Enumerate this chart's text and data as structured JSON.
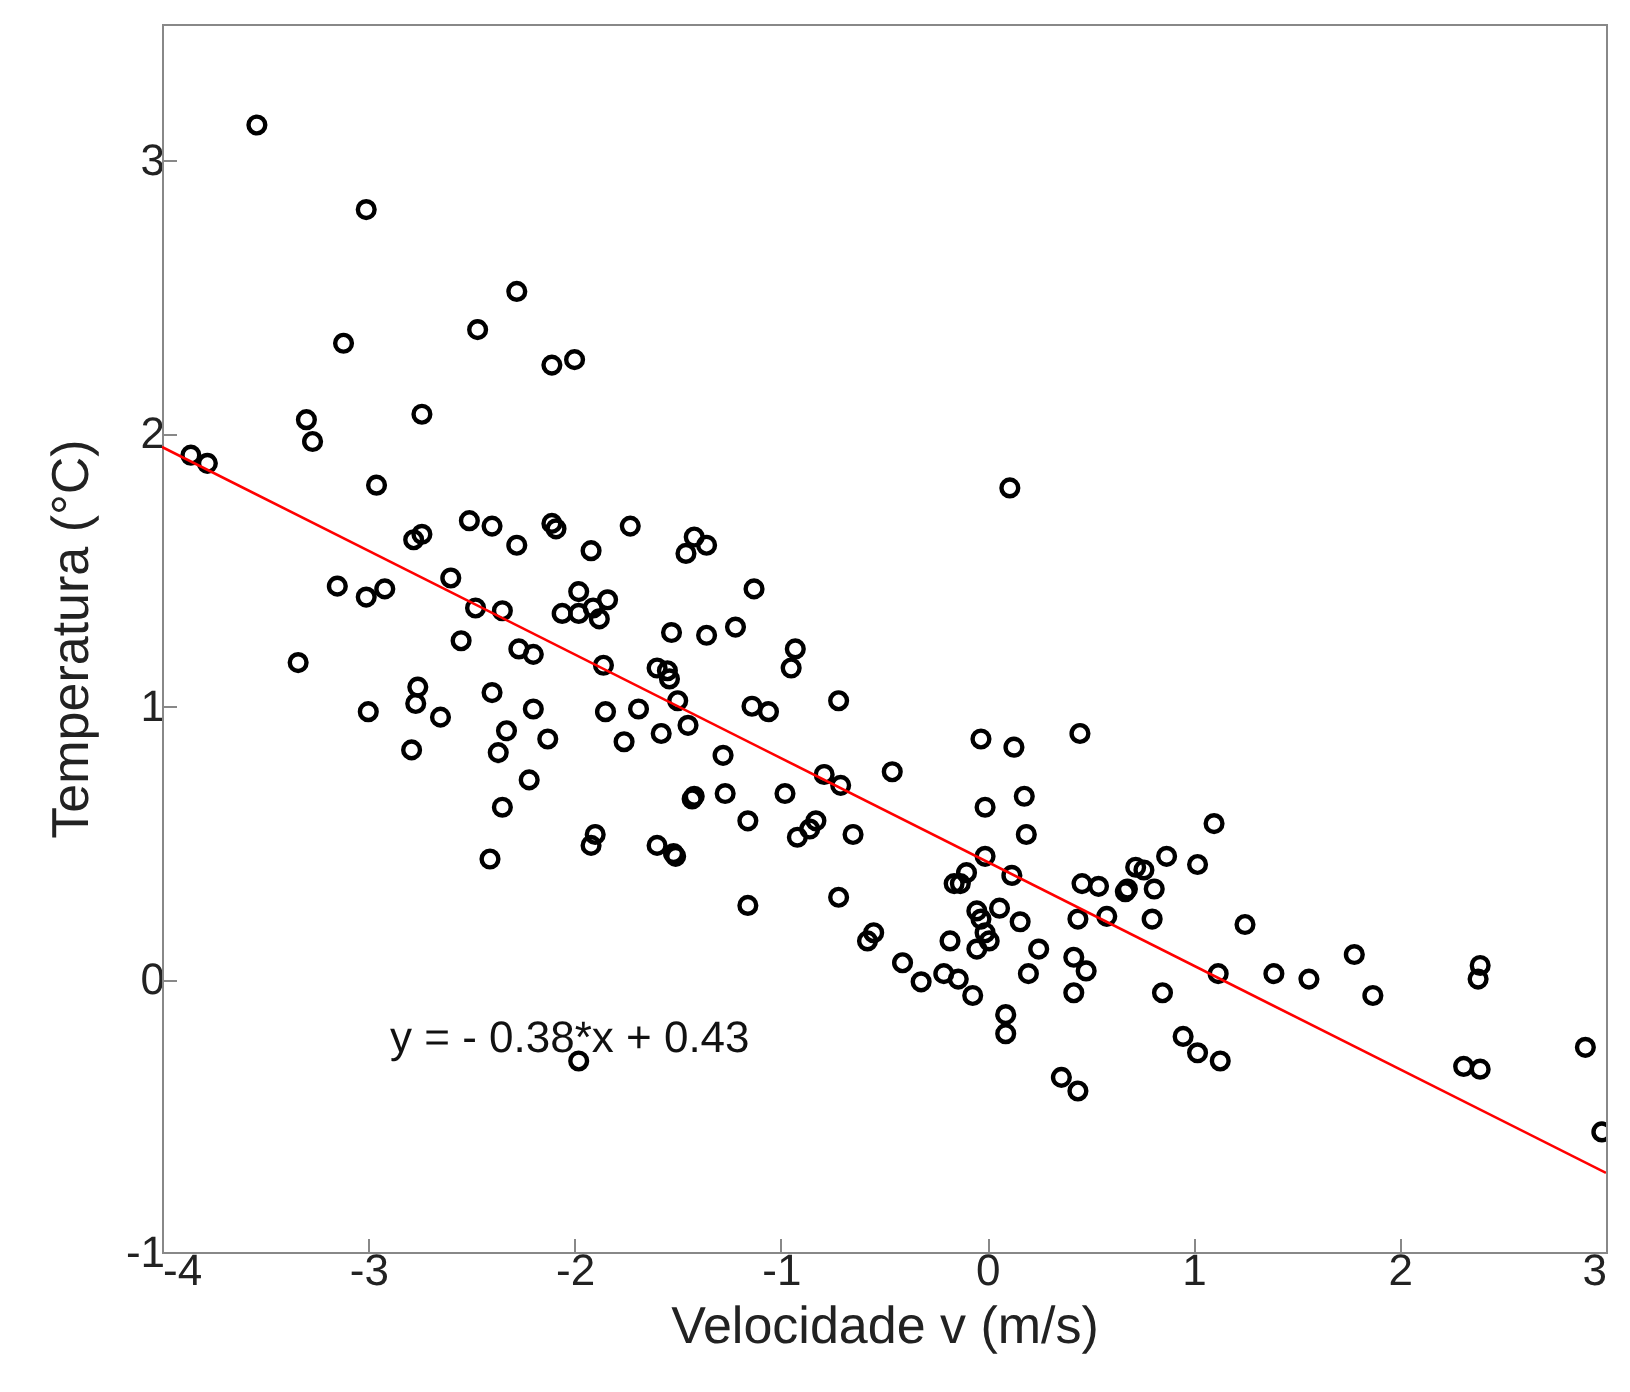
{
  "chart_data": {
    "type": "scatter",
    "xlabel": "Velocidade v (m/s)",
    "ylabel": "Temperatura (°C)",
    "xlim": [
      -4,
      3
    ],
    "ylim": [
      -1,
      3.5
    ],
    "xticks": [
      -4,
      -3,
      -2,
      -1,
      0,
      1,
      2,
      3
    ],
    "yticks": [
      -1,
      0,
      1,
      2,
      3
    ],
    "grid": false,
    "legend": false,
    "marker": "circle",
    "annotations": [
      "y = - 0.38*x + 0.43"
    ],
    "series": [
      {
        "type": "scatter",
        "color": "#000000",
        "x": [
          -3.54,
          -3.01,
          -2.28,
          -3.12,
          -2.47,
          -2.11,
          -2.0,
          -3.3,
          -3.27,
          -2.74,
          -3.86,
          -3.78,
          -2.96,
          -2.51,
          -2.4,
          -2.11,
          -2.09,
          -1.73,
          -2.78,
          -2.74,
          -2.28,
          -1.92,
          -3.15,
          -3.01,
          -2.92,
          -2.6,
          -1.98,
          -1.84,
          -2.48,
          -2.35,
          -2.06,
          -1.98,
          -1.91,
          -1.88,
          -2.55,
          -2.27,
          -2.2,
          -1.86,
          -3.34,
          -1.6,
          -2.76,
          -2.77,
          -3.0,
          -2.65,
          -2.4,
          -2.2,
          -1.85,
          -1.69,
          -2.79,
          -2.33,
          -2.37,
          -2.13,
          -1.76,
          -2.22,
          -2.35,
          -1.9,
          -1.92,
          -2.41,
          -1.98,
          -1.6,
          -1.58,
          0.11,
          -1.42,
          -1.46,
          -1.36,
          -1.13,
          -1.53,
          -1.36,
          -1.22,
          -0.93,
          -0.95,
          -1.55,
          -1.54,
          -1.5,
          -1.14,
          -1.06,
          -0.72,
          -1.45,
          -1.28,
          -1.43,
          -1.42,
          -1.27,
          -0.98,
          -1.16,
          -0.79,
          -0.71,
          -0.46,
          -0.92,
          -0.86,
          -0.83,
          -0.65,
          -1.52,
          -1.51,
          -1.16,
          -0.72,
          -0.58,
          -0.55,
          -0.41,
          -0.32,
          -0.21,
          -0.14,
          -0.07,
          -0.18,
          -0.16,
          -0.13,
          -0.1,
          -0.03,
          0.13,
          -0.01,
          0.18,
          0.19,
          -0.01,
          0.12,
          -0.05,
          -0.03,
          -0.01,
          0.01,
          -0.05,
          0.06,
          0.16,
          0.25,
          0.2,
          0.09,
          0.09,
          0.36,
          0.44,
          0.42,
          0.48,
          0.42,
          0.44,
          0.45,
          0.46,
          0.54,
          0.58,
          0.67,
          0.68,
          0.72,
          0.76,
          0.87,
          0.81,
          0.8,
          1.02,
          1.1,
          1.25,
          1.12,
          0.85,
          0.95,
          1.02,
          1.13,
          1.39,
          1.56,
          1.78,
          1.87,
          2.39,
          2.38,
          2.31,
          2.39,
          2.9,
          2.98
        ],
        "values": [
          3.13,
          2.82,
          2.52,
          2.33,
          2.38,
          2.25,
          2.27,
          2.05,
          1.97,
          2.07,
          1.92,
          1.89,
          1.81,
          1.68,
          1.66,
          1.67,
          1.65,
          1.66,
          1.61,
          1.63,
          1.59,
          1.57,
          1.44,
          1.4,
          1.43,
          1.47,
          1.42,
          1.39,
          1.36,
          1.35,
          1.34,
          1.34,
          1.36,
          1.32,
          1.24,
          1.21,
          1.19,
          1.15,
          1.16,
          1.14,
          1.07,
          1.01,
          0.98,
          0.96,
          1.05,
          0.99,
          0.98,
          0.99,
          0.84,
          0.91,
          0.83,
          0.88,
          0.87,
          0.73,
          0.63,
          0.53,
          0.49,
          0.44,
          -0.3,
          0.49,
          0.9,
          1.8,
          1.62,
          1.56,
          1.59,
          1.43,
          1.27,
          1.26,
          1.29,
          1.21,
          1.14,
          1.13,
          1.1,
          1.02,
          1.0,
          0.98,
          1.02,
          0.93,
          0.82,
          0.66,
          0.67,
          0.68,
          0.68,
          0.58,
          0.75,
          0.71,
          0.76,
          0.52,
          0.55,
          0.58,
          0.53,
          0.46,
          0.45,
          0.27,
          0.3,
          0.14,
          0.17,
          0.06,
          -0.01,
          0.02,
          0.0,
          -0.06,
          0.14,
          0.35,
          0.35,
          0.39,
          0.88,
          0.85,
          0.63,
          0.67,
          0.53,
          0.45,
          0.38,
          0.25,
          0.22,
          0.17,
          0.14,
          0.11,
          0.26,
          0.21,
          0.11,
          0.02,
          -0.13,
          -0.2,
          -0.36,
          -0.41,
          0.08,
          0.03,
          -0.05,
          0.22,
          0.9,
          0.35,
          0.34,
          0.23,
          0.32,
          0.33,
          0.41,
          0.4,
          0.45,
          0.33,
          0.22,
          0.42,
          0.57,
          0.2,
          0.02,
          -0.05,
          -0.21,
          -0.27,
          -0.3,
          0.02,
          0.0,
          0.09,
          -0.06,
          0.05,
          0.0,
          -0.32,
          -0.33,
          -0.25,
          -0.56
        ]
      },
      {
        "type": "line",
        "color": "#ff0000",
        "marker": "none",
        "x": [
          -4,
          3
        ],
        "values": [
          1.95,
          -0.71
        ]
      }
    ]
  }
}
